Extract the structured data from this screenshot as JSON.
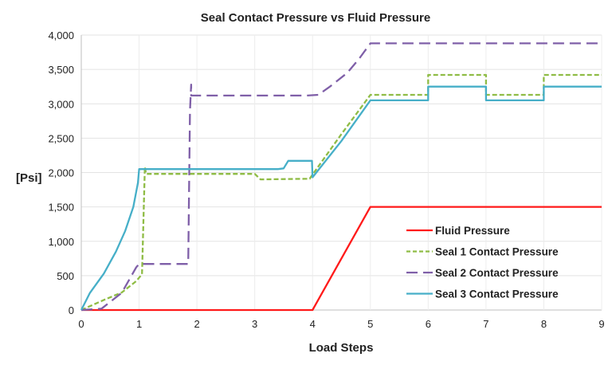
{
  "chart_data": {
    "type": "line",
    "title": "Seal Contact Pressure vs Fluid Pressure",
    "xlabel": "Load Steps",
    "ylabel": "[Psi]",
    "xlim": [
      0,
      9
    ],
    "ylim": [
      0,
      4000
    ],
    "x_ticks": [
      "0",
      "1",
      "2",
      "3",
      "4",
      "5",
      "6",
      "7",
      "8",
      "9"
    ],
    "y_ticks": [
      "0",
      "500",
      "1,000",
      "1,500",
      "2,000",
      "2,500",
      "3,000",
      "3,500",
      "4,000"
    ],
    "grid": true,
    "legend_position": "bottom-right (inside plot)",
    "series": [
      {
        "name": "Fluid Pressure",
        "color": "#ff1a1a",
        "style": "solid",
        "points": [
          [
            0,
            0
          ],
          [
            4,
            0
          ],
          [
            5,
            1500
          ],
          [
            9,
            1500
          ]
        ]
      },
      {
        "name": "Seal 1 Contact Pressure",
        "color": "#8fbc45",
        "style": "short-dash",
        "points": [
          [
            0,
            0
          ],
          [
            0.4,
            150
          ],
          [
            0.7,
            255
          ],
          [
            0.95,
            420
          ],
          [
            1.05,
            520
          ],
          [
            1.1,
            2080
          ],
          [
            1.12,
            1980
          ],
          [
            3.0,
            1980
          ],
          [
            3.1,
            1900
          ],
          [
            3.95,
            1910
          ],
          [
            4.0,
            1970
          ],
          [
            4.5,
            2560
          ],
          [
            5,
            3130
          ],
          [
            6,
            3130
          ],
          [
            6,
            3420
          ],
          [
            7,
            3420
          ],
          [
            7,
            3130
          ],
          [
            8,
            3130
          ],
          [
            8,
            3420
          ],
          [
            9,
            3420
          ]
        ]
      },
      {
        "name": "Seal 2 Contact Pressure",
        "color": "#7f5fa8",
        "style": "long-dash",
        "points": [
          [
            0,
            0
          ],
          [
            0.35,
            20
          ],
          [
            0.7,
            250
          ],
          [
            0.95,
            620
          ],
          [
            1.0,
            670
          ],
          [
            1.85,
            670
          ],
          [
            1.88,
            2900
          ],
          [
            1.9,
            3280
          ],
          [
            1.9,
            3120
          ],
          [
            3.9,
            3120
          ],
          [
            4.1,
            3130
          ],
          [
            4.3,
            3250
          ],
          [
            4.6,
            3450
          ],
          [
            4.8,
            3650
          ],
          [
            5,
            3880
          ],
          [
            9,
            3880
          ]
        ]
      },
      {
        "name": "Seal 3 Contact Pressure",
        "color": "#46afc8",
        "style": "solid",
        "points": [
          [
            0,
            0
          ],
          [
            0.15,
            250
          ],
          [
            0.39,
            530
          ],
          [
            0.6,
            850
          ],
          [
            0.76,
            1150
          ],
          [
            0.9,
            1500
          ],
          [
            0.98,
            1850
          ],
          [
            1.0,
            2050
          ],
          [
            3.4,
            2050
          ],
          [
            3.5,
            2060
          ],
          [
            3.58,
            2170
          ],
          [
            3.99,
            2170
          ],
          [
            4.0,
            1930
          ],
          [
            4.5,
            2460
          ],
          [
            5,
            3050
          ],
          [
            6,
            3050
          ],
          [
            6,
            3250
          ],
          [
            7,
            3250
          ],
          [
            7,
            3050
          ],
          [
            8,
            3050
          ],
          [
            8,
            3250
          ],
          [
            9,
            3250
          ]
        ]
      }
    ]
  }
}
